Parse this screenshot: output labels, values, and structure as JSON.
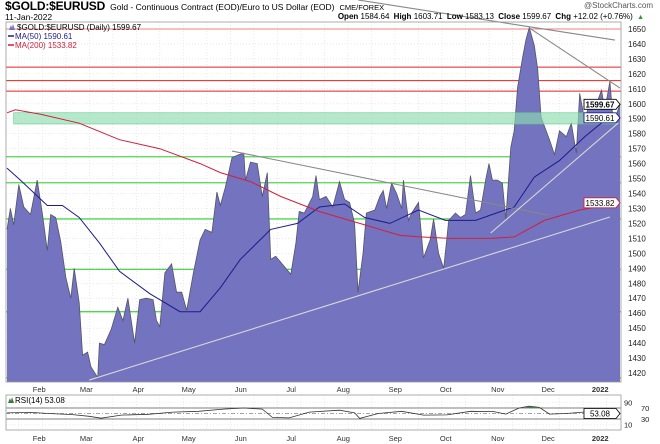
{
  "header": {
    "symbol": "$GOLD:$EURUSD",
    "description": "Gold - Continuous Contract (EOD)/Euro to US Dollar (EOD)",
    "exchange": "CME/FOREX",
    "brand": "@StockCharts.com",
    "date": "11-Jan-2022",
    "open_label": "Open",
    "open": "1584.64",
    "high_label": "High",
    "high": "1603.71",
    "low_label": "Low",
    "low": "1583.13",
    "close_label": "Close",
    "close": "1599.67",
    "chg_label": "Chg",
    "chg": "+12.02 (+0.76%)",
    "chg_icon": "up-triangle-icon"
  },
  "legend": {
    "price": "$GOLD:$EURUSD (Daily) 1599.67",
    "ma50": "MA(50) 1590.61",
    "ma200": "MA(200) 1533.82",
    "rsi": "RSI(14) 53.08"
  },
  "colors": {
    "area_fill": "#7373c0",
    "area_edge": "#555566",
    "ma50": "#1c1c8c",
    "ma200": "#d0203a",
    "support": "#4fd64f",
    "resistance": "#e82020",
    "band": "#8fdcb0",
    "trend_dark": "#888888",
    "trend_light": "#d8d8d8"
  },
  "chart_data": [
    {
      "type": "area",
      "title": "$GOLD:$EURUSD (Daily) 1599.67",
      "ylim": [
        1415,
        1655
      ],
      "yticks": [
        1420,
        1430,
        1440,
        1450,
        1460,
        1470,
        1480,
        1490,
        1500,
        1510,
        1520,
        1530,
        1540,
        1550,
        1560,
        1570,
        1580,
        1590,
        1600,
        1610,
        1620,
        1630,
        1640,
        1650
      ],
      "xlim": [
        "2021-01-11",
        "2022-01-11"
      ],
      "xticks": [
        {
          "date": "2021-02-01",
          "label": "Feb"
        },
        {
          "date": "2021-03-01",
          "label": "Mar"
        },
        {
          "date": "2021-04-01",
          "label": "Apr"
        },
        {
          "date": "2021-05-01",
          "label": "May"
        },
        {
          "date": "2021-06-01",
          "label": "Jun"
        },
        {
          "date": "2021-07-01",
          "label": "Jul"
        },
        {
          "date": "2021-08-01",
          "label": "Aug"
        },
        {
          "date": "2021-09-01",
          "label": "Sep"
        },
        {
          "date": "2021-10-01",
          "label": "Oct"
        },
        {
          "date": "2021-11-01",
          "label": "Nov"
        },
        {
          "date": "2021-12-01",
          "label": "Dec"
        },
        {
          "date": "2022-01-01",
          "label": "2022"
        }
      ],
      "grid": true,
      "legend": "top-left",
      "series": [
        {
          "name": "$GOLD:$EURUSD (Daily)",
          "x": [
            "2021-01-11",
            "2021-01-13",
            "2021-01-15",
            "2021-01-18",
            "2021-01-21",
            "2021-01-25",
            "2021-01-29",
            "2021-02-01",
            "2021-02-04",
            "2021-02-06",
            "2021-02-09",
            "2021-02-12",
            "2021-02-15",
            "2021-02-18",
            "2021-02-20",
            "2021-02-23",
            "2021-02-25",
            "2021-02-28",
            "2021-03-02",
            "2021-03-06",
            "2021-03-07",
            "2021-03-10",
            "2021-03-14",
            "2021-03-18",
            "2021-03-21",
            "2021-03-24",
            "2021-03-28",
            "2021-03-31",
            "2021-04-04",
            "2021-04-08",
            "2021-04-10",
            "2021-04-12",
            "2021-04-15",
            "2021-04-19",
            "2021-04-22",
            "2021-04-25",
            "2021-04-28",
            "2021-05-02",
            "2021-05-06",
            "2021-05-09",
            "2021-05-13",
            "2021-05-16",
            "2021-05-18",
            "2021-05-21",
            "2021-05-25",
            "2021-05-29",
            "2021-06-01",
            "2021-06-02",
            "2021-06-05",
            "2021-06-09",
            "2021-06-12",
            "2021-06-15",
            "2021-06-17",
            "2021-06-20",
            "2021-06-23",
            "2021-06-29",
            "2021-07-02",
            "2021-07-04",
            "2021-07-07",
            "2021-07-12",
            "2021-07-14",
            "2021-07-16",
            "2021-07-20",
            "2021-07-24",
            "2021-07-28",
            "2021-07-31",
            "2021-08-03",
            "2021-08-06",
            "2021-08-08",
            "2021-08-11",
            "2021-08-13",
            "2021-08-18",
            "2021-08-21",
            "2021-08-23",
            "2021-08-25",
            "2021-08-28",
            "2021-08-31",
            "2021-09-03",
            "2021-09-04",
            "2021-09-07",
            "2021-09-09",
            "2021-09-13",
            "2021-09-16",
            "2021-09-20",
            "2021-09-22",
            "2021-09-25",
            "2021-09-28",
            "2021-10-01",
            "2021-10-05",
            "2021-10-08",
            "2021-10-11",
            "2021-10-14",
            "2021-10-17",
            "2021-10-20",
            "2021-10-23",
            "2021-10-25",
            "2021-10-27",
            "2021-10-30",
            "2021-11-02",
            "2021-11-04",
            "2021-11-07",
            "2021-11-09",
            "2021-11-11",
            "2021-11-14",
            "2021-11-16",
            "2021-11-18",
            "2021-11-21",
            "2021-11-23",
            "2021-11-25",
            "2021-11-27",
            "2021-11-30",
            "2021-12-03",
            "2021-12-06",
            "2021-12-10",
            "2021-12-13",
            "2021-12-16",
            "2021-12-18",
            "2021-12-21",
            "2021-12-24",
            "2021-12-28",
            "2021-12-31",
            "2022-01-02",
            "2022-01-05",
            "2022-01-07",
            "2022-01-11"
          ],
          "y": [
            1516,
            1530,
            1519,
            1546,
            1531,
            1526,
            1549,
            1527,
            1502,
            1526,
            1524,
            1508,
            1484,
            1470,
            1490,
            1467,
            1432,
            1434,
            1424,
            1417,
            1440,
            1439,
            1449,
            1464,
            1455,
            1470,
            1440,
            1469,
            1470,
            1469,
            1455,
            1451,
            1487,
            1493,
            1474,
            1474,
            1462,
            1487,
            1509,
            1516,
            1514,
            1541,
            1532,
            1544,
            1564,
            1566,
            1567,
            1549,
            1561,
            1560,
            1538,
            1554,
            1496,
            1498,
            1494,
            1486,
            1507,
            1528,
            1527,
            1538,
            1552,
            1536,
            1538,
            1531,
            1548,
            1536,
            1534,
            1520,
            1474,
            1500,
            1527,
            1529,
            1538,
            1542,
            1530,
            1547,
            1540,
            1530,
            1549,
            1522,
            1527,
            1534,
            1497,
            1509,
            1523,
            1500,
            1490,
            1522,
            1527,
            1524,
            1526,
            1552,
            1527,
            1529,
            1549,
            1560,
            1549,
            1549,
            1547,
            1523,
            1571,
            1582,
            1611,
            1631,
            1643,
            1651,
            1639,
            1623,
            1591,
            1585,
            1576,
            1566,
            1582,
            1578,
            1587,
            1567,
            1607,
            1589,
            1601,
            1600,
            1609,
            1596,
            1615,
            1587,
            1599.67
          ]
        },
        {
          "name": "MA(50)",
          "x": [
            "2021-01-11",
            "2021-01-19",
            "2021-02-04",
            "2021-02-13",
            "2021-02-23",
            "2021-03-07",
            "2021-03-19",
            "2021-04-06",
            "2021-04-24",
            "2021-05-06",
            "2021-05-18",
            "2021-05-30",
            "2021-06-17",
            "2021-07-03",
            "2021-07-16",
            "2021-07-31",
            "2021-08-12",
            "2021-08-27",
            "2021-09-13",
            "2021-09-29",
            "2021-10-17",
            "2021-11-01",
            "2021-11-09",
            "2021-11-21",
            "2021-12-06",
            "2021-12-21",
            "2022-01-02",
            "2022-01-11"
          ],
          "y": [
            1557,
            1549,
            1532,
            1532,
            1524,
            1507,
            1488,
            1473,
            1461,
            1461,
            1477,
            1496,
            1516,
            1520,
            1531,
            1533,
            1524,
            1520,
            1529,
            1522,
            1522,
            1528,
            1531,
            1551,
            1562,
            1578,
            1589,
            1590.61
          ]
        },
        {
          "name": "MA(200)",
          "x": [
            "2021-01-11",
            "2021-01-16",
            "2021-01-31",
            "2021-02-23",
            "2021-03-19",
            "2021-04-12",
            "2021-05-06",
            "2021-05-18",
            "2021-06-05",
            "2021-06-23",
            "2021-07-16",
            "2021-08-09",
            "2021-09-02",
            "2021-09-14",
            "2021-10-02",
            "2021-10-26",
            "2021-11-09",
            "2021-11-27",
            "2021-12-18",
            "2022-01-11"
          ],
          "y": [
            1594,
            1596,
            1593,
            1587,
            1576,
            1570,
            1560,
            1554,
            1548,
            1538,
            1528,
            1520,
            1512,
            1511,
            1510,
            1510,
            1511,
            1522,
            1529,
            1533.82
          ]
        }
      ],
      "value_badges": [
        {
          "label": "1599.67",
          "value": 1599.67,
          "color": "#000000"
        },
        {
          "label": "1590.61",
          "value": 1590.61,
          "color": "#1c1c8c"
        },
        {
          "label": "1533.82",
          "value": 1533.82,
          "color": "#d0203a"
        }
      ],
      "horizontal_lines": [
        {
          "value": 1650,
          "kind": "resistance-light"
        },
        {
          "value": 1624.5,
          "kind": "resistance"
        },
        {
          "value": 1615.5,
          "kind": "resistance"
        },
        {
          "value": 1608.5,
          "kind": "resistance"
        },
        {
          "value": 1564.6,
          "kind": "support"
        },
        {
          "value": 1547.2,
          "kind": "support"
        },
        {
          "value": 1523,
          "kind": "support"
        },
        {
          "value": 1489.3,
          "kind": "support"
        },
        {
          "value": 1461,
          "kind": "support"
        },
        {
          "value": 1416.7,
          "kind": "support"
        }
      ],
      "bands": [
        {
          "from": 1586.5,
          "to": 1594,
          "start": "2021-01-15",
          "end": "2022-01-09"
        }
      ],
      "trendlines": [
        {
          "kind": "dark",
          "p1": [
            "2021-08-08",
            1669.4
          ],
          "p2": [
            "2022-01-08",
            1642.6
          ]
        },
        {
          "kind": "dark",
          "p1": [
            "2021-11-18",
            1650.7
          ],
          "p2": [
            "2022-01-11",
            1610.5
          ]
        },
        {
          "kind": "dark",
          "p1": [
            "2021-05-25",
            1568.4
          ],
          "p2": [
            "2021-11-29",
            1525.6
          ]
        },
        {
          "kind": "light",
          "p1": [
            "2021-03-01",
            1415.3
          ],
          "p2": [
            "2022-01-05",
            1524.3
          ]
        },
        {
          "kind": "light",
          "p1": [
            "2021-10-26",
            1513.6
          ],
          "p2": [
            "2022-01-10",
            1587.2
          ]
        }
      ]
    },
    {
      "type": "line",
      "title": "RSI(14) 53.08",
      "ylim": [
        0,
        100
      ],
      "yticks": [
        90,
        70,
        30,
        10
      ],
      "reference_lines": [
        70,
        50,
        30
      ],
      "value_badge": "53.08",
      "series": [
        {
          "name": "RSI(14)",
          "x": [
            "2021-01-11",
            "2021-01-25",
            "2021-02-05",
            "2021-02-19",
            "2021-03-01",
            "2021-03-08",
            "2021-03-20",
            "2021-04-05",
            "2021-04-20",
            "2021-05-05",
            "2021-05-20",
            "2021-06-01",
            "2021-06-12",
            "2021-06-18",
            "2021-06-28",
            "2021-07-10",
            "2021-07-28",
            "2021-08-06",
            "2021-08-09",
            "2021-08-20",
            "2021-09-03",
            "2021-09-16",
            "2021-09-30",
            "2021-10-14",
            "2021-10-28",
            "2021-11-04",
            "2021-11-12",
            "2021-11-18",
            "2021-11-24",
            "2021-11-30",
            "2021-12-10",
            "2021-12-20",
            "2021-12-31",
            "2022-01-07",
            "2022-01-11"
          ],
          "y": [
            52,
            54,
            50,
            46,
            40,
            33,
            44,
            47,
            55,
            58,
            66,
            70,
            66,
            36,
            34,
            55,
            62,
            52,
            32,
            50,
            58,
            44,
            45,
            58,
            57,
            48,
            70,
            77,
            72,
            48,
            50,
            55,
            58,
            48,
            53.08
          ]
        }
      ]
    }
  ]
}
